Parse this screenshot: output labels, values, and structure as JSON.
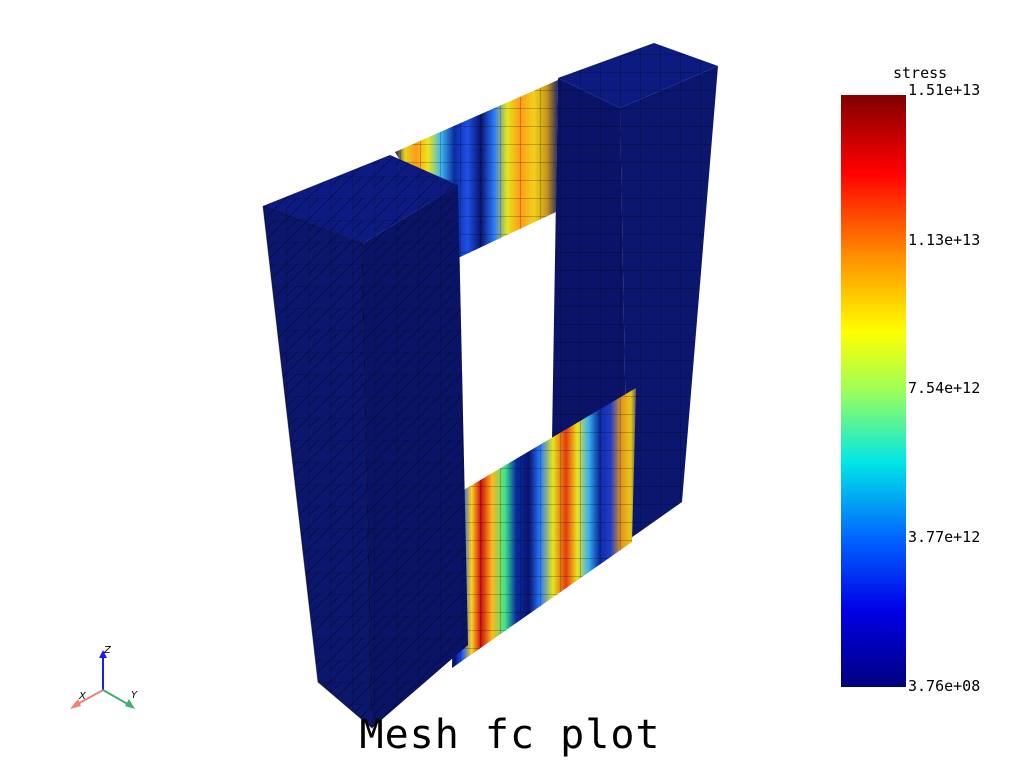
{
  "title": "Mesh fc plot",
  "colorbar": {
    "title": "stress",
    "ticks": [
      "1.51e+13",
      "1.13e+13",
      "7.54e+12",
      "3.77e+12",
      "3.76e+08"
    ],
    "min": 376000000,
    "max": 15100000000000,
    "colormap": [
      "#00007f",
      "#0000ff",
      "#00bfff",
      "#4dff9a",
      "#e6ff1a",
      "#ff9900",
      "#ff1a00",
      "#800000"
    ]
  },
  "orientation_axes": {
    "x_label": "X",
    "y_label": "Y",
    "z_label": "Z"
  },
  "colors": {
    "body": "#0a1470",
    "mesh_lines": "#000000"
  }
}
